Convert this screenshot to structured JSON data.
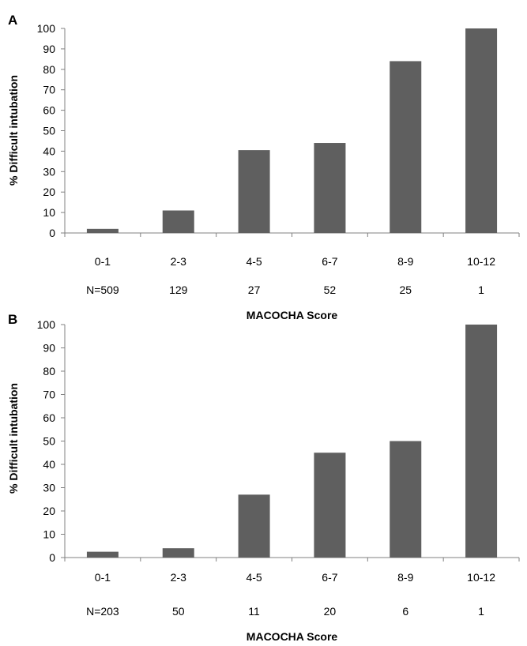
{
  "chart_data": [
    {
      "panel": "A",
      "type": "bar",
      "categories": [
        "0-1",
        "2-3",
        "4-5",
        "6-7",
        "8-9",
        "10-12"
      ],
      "values": [
        2,
        11,
        40.5,
        44,
        84,
        100
      ],
      "n_labels": [
        "N=509",
        "129",
        "27",
        "52",
        "25",
        "1"
      ],
      "ylabel": "% Difficult intubation",
      "xlabel": "MACOCHA Score",
      "ylim": [
        0,
        100
      ],
      "yticks": [
        "0",
        "10",
        "20",
        "30",
        "40",
        "50",
        "60",
        "70",
        "80",
        "90",
        "100"
      ],
      "grid": false,
      "bar_color": "#5f5f5f"
    },
    {
      "panel": "B",
      "type": "bar",
      "categories": [
        "0-1",
        "2-3",
        "4-5",
        "6-7",
        "8-9",
        "10-12"
      ],
      "values": [
        2.5,
        4,
        27,
        45,
        50,
        100
      ],
      "n_labels": [
        "N=203",
        "50",
        "11",
        "20",
        "6",
        "1"
      ],
      "ylabel": "% Difficult intubation",
      "xlabel": "MACOCHA Score",
      "ylim": [
        0,
        100
      ],
      "yticks": [
        "0",
        "10",
        "20",
        "30",
        "40",
        "50",
        "60",
        "70",
        "80",
        "90",
        "100"
      ],
      "grid": false,
      "bar_color": "#5f5f5f"
    }
  ]
}
